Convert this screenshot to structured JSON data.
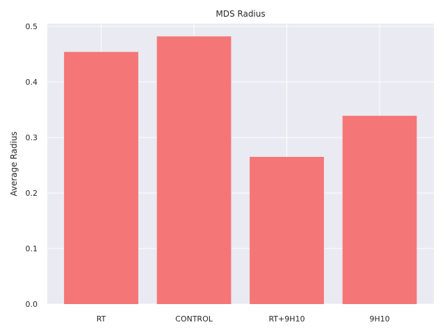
{
  "chart_data": {
    "type": "bar",
    "title": "MDS Radius",
    "xlabel": "",
    "ylabel": "Average Radius",
    "categories": [
      "RT",
      "CONTROL",
      "RT+9H10",
      "9H10"
    ],
    "values": [
      0.454,
      0.482,
      0.265,
      0.339
    ],
    "ylim": [
      0,
      0.505
    ],
    "yticks": [
      0.0,
      0.1,
      0.2,
      0.3,
      0.4,
      0.5
    ],
    "ytick_labels": [
      "0.0",
      "0.1",
      "0.2",
      "0.3",
      "0.4",
      "0.5"
    ],
    "grid": true,
    "legend": "none",
    "colors": {
      "bar": "#f47070",
      "plot_background": "#eaeaf2",
      "grid": "#ffffff",
      "text": "#262626"
    }
  }
}
